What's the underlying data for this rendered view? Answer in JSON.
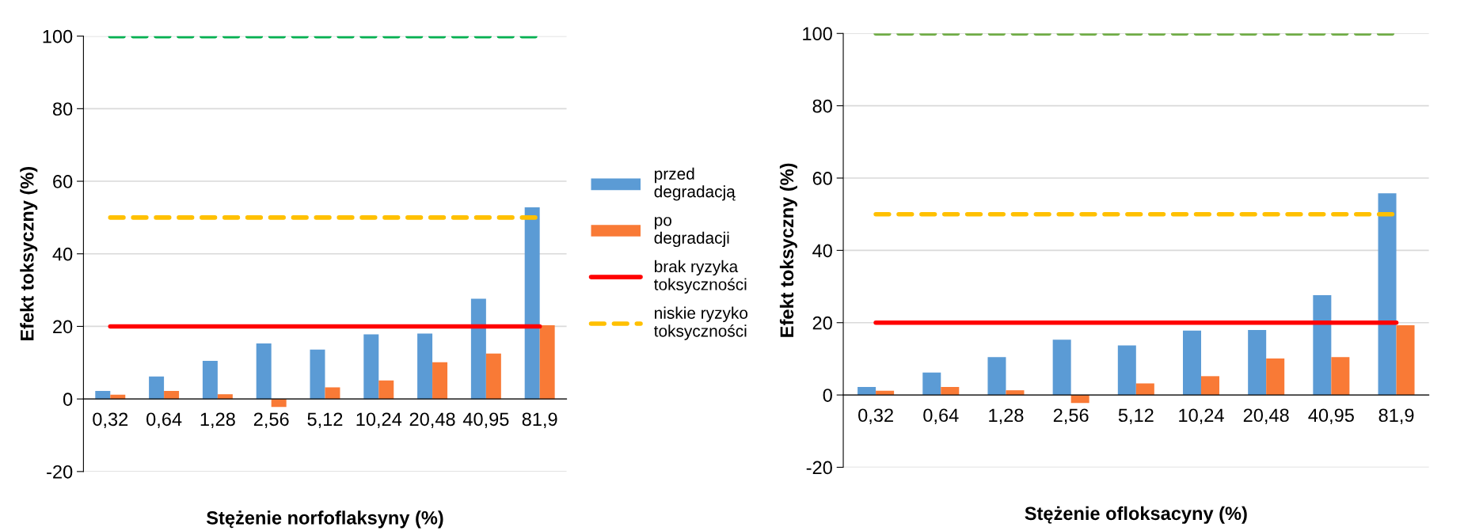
{
  "chart_data": [
    {
      "type": "bar",
      "xlabel": "Stężenie norfoflaksyny (%)",
      "ylabel": "Efekt toksyczny (%)",
      "categories": [
        "0,32",
        "0,64",
        "1,28",
        "2,56",
        "5,12",
        "10,24",
        "20,48",
        "40,95",
        "81,9"
      ],
      "series": [
        {
          "name": "przed degradacją",
          "color": "#5b9bd5",
          "values": [
            2.2,
            6.2,
            10.5,
            15.3,
            13.6,
            17.8,
            18,
            27.6,
            52.8
          ]
        },
        {
          "name": "po degradacji",
          "color": "#f97a36",
          "values": [
            1.2,
            2.2,
            1.3,
            -2.2,
            3.2,
            5.1,
            10.1,
            12.5,
            20.3
          ]
        },
        {
          "type": "line",
          "name": "brak ryzyka toksyczności",
          "color": "#ff0000",
          "line_style": "solid",
          "values": [
            20,
            20,
            20,
            20,
            20,
            20,
            20,
            20,
            20
          ]
        },
        {
          "type": "line",
          "name": "niskie ryzyko toksyczności",
          "color": "#ffc000",
          "line_style": "dashed",
          "values": [
            50,
            50,
            50,
            50,
            50,
            50,
            50,
            50,
            50
          ]
        },
        {
          "type": "line",
          "color": "#00b050",
          "line_style": "dashed",
          "values": [
            100,
            100,
            100,
            100,
            100,
            100,
            100,
            100,
            100
          ]
        }
      ],
      "ylim": [
        -20,
        100
      ],
      "yticks": [
        -20,
        0,
        20,
        40,
        60,
        80,
        100
      ],
      "grid": "y",
      "legend": "right"
    },
    {
      "type": "bar",
      "xlabel": "Stężenie ofloksacyny (%)",
      "ylabel": "Efekt toksyczny (%)",
      "categories": [
        "0,32",
        "0,64",
        "1,28",
        "2,56",
        "5,12",
        "10,24",
        "20,48",
        "40,95",
        "81,9"
      ],
      "series": [
        {
          "color": "#5b9bd5",
          "values": [
            2.2,
            6.2,
            10.5,
            15.3,
            13.7,
            17.8,
            18,
            27.6,
            55.8
          ]
        },
        {
          "color": "#f97a36",
          "values": [
            1.2,
            2.2,
            1.3,
            -2.2,
            3.2,
            5.2,
            10.1,
            10.5,
            19.3
          ]
        },
        {
          "type": "line",
          "color": "#ff0000",
          "line_style": "solid",
          "values": [
            20,
            20,
            20,
            20,
            20,
            20,
            20,
            20,
            20
          ]
        },
        {
          "type": "line",
          "color": "#ffc000",
          "line_style": "dashed",
          "values": [
            50,
            50,
            50,
            50,
            50,
            50,
            50,
            50,
            50
          ]
        },
        {
          "type": "line",
          "color": "#70ad47",
          "line_style": "dashed",
          "values": [
            100,
            100,
            100,
            100,
            100,
            100,
            100,
            100,
            100
          ]
        }
      ],
      "ylim": [
        -20,
        100
      ],
      "yticks": [
        -20,
        0,
        20,
        40,
        60,
        80,
        100
      ],
      "grid": "y",
      "legend": false
    }
  ]
}
